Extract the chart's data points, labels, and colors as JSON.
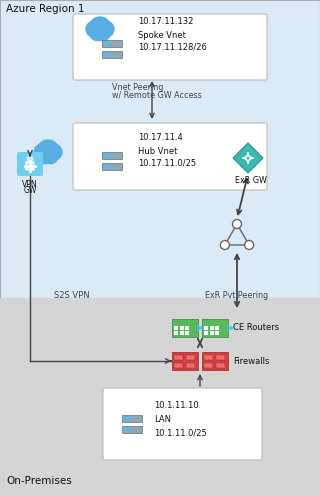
{
  "fig_width": 3.2,
  "fig_height": 4.96,
  "dpi": 100,
  "azure_bg": "#daeaf7",
  "onprem_bg": "#d5d5d5",
  "white": "#ffffff",
  "black": "#111111",
  "gray_text": "#444444",
  "border_color": "#bbbbbb",
  "title_azure": "Azure Region 1",
  "title_onprem": "On-Premises",
  "spoke_ip": "10.17.11.132",
  "spoke_name": "Spoke Vnet",
  "spoke_subnet": "10.17.11.128/26",
  "hub_ip": "10.17.11.4",
  "hub_name": "Hub Vnet",
  "hub_subnet": "10.17.11.0/25",
  "lan_ip": "10.1.11.10",
  "lan_name": "LAN",
  "lan_subnet": "10.1.11.0/25",
  "peering_line1": "Vnet Peering",
  "peering_line2": "w/ Remote GW Access",
  "s2s_label": "S2S VPN",
  "exr_pvt_label": "ExR Pvt Peering",
  "exr_gw_label": "ExR GW",
  "vpn_label1": "VPN",
  "vpn_label2": "GW",
  "ce_label": "CE Routers",
  "fw_label": "Firewalls",
  "cloud_color": "#5aade0",
  "teal_color": "#3db8b0",
  "vpn_icon_top": "#6fcfed",
  "vpn_icon_bot": "#3ba8c8",
  "server_body": "#8fa8b4",
  "server_dark": "#607080",
  "server_light": "#aabbc8",
  "dot_blue": "#4dc0f0",
  "green_router": "#5ab85c",
  "green_dark": "#3a803a",
  "red_fw": "#d44040",
  "red_fw_dark": "#a02020",
  "red_fw_light": "#e87070",
  "arrow_color": "#444444"
}
